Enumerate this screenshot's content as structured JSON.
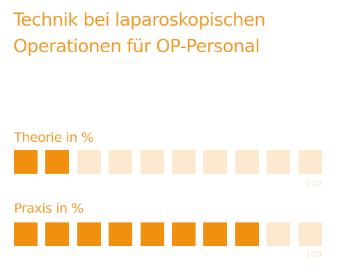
{
  "title": {
    "line1": "Technik bei laparoskopischen",
    "line2": "Operationen für OP-Personal"
  },
  "scales": [
    {
      "label": "Theorie in %",
      "filled": 2,
      "total": 10,
      "value_percent": 20,
      "max_label": "100"
    },
    {
      "label": "Praxis in %",
      "filled": 8,
      "total": 10,
      "value_percent": 80,
      "max_label": "100"
    }
  ],
  "colors": {
    "text": "#ee9a2a",
    "filled": "#f0900e",
    "empty": "#fbe8cf",
    "max_label": "#fbe3c4"
  }
}
